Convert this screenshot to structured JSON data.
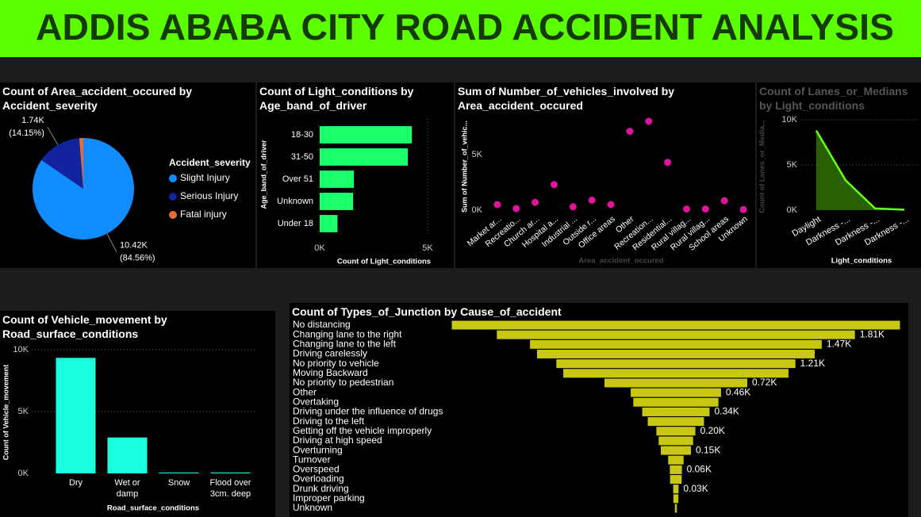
{
  "header": {
    "title": "ADDIS ABABA CITY ROAD ACCIDENT ANALYSIS"
  },
  "chart_data": [
    {
      "type": "pie",
      "title": "Count of Area_accident_occured by Accident_severity",
      "legend_title": "Accident_severity",
      "categories": [
        "Slight Injury",
        "Serious Injury",
        "Fatal injury"
      ],
      "values": [
        10415,
        1743,
        158
      ],
      "colors": [
        "#118dff",
        "#12239e",
        "#e66c37"
      ],
      "value_labels": [
        "10.42K",
        "1.74K",
        null
      ],
      "percent_labels": [
        "(84.56%)",
        "(14.15%)",
        null
      ]
    },
    {
      "type": "bar",
      "horizontal": true,
      "title": "Count of Light_conditions by Age_band_of_driver",
      "categories": [
        "18-30",
        "31-50",
        "Over 51",
        "Unknown",
        "Under 18"
      ],
      "values": [
        4271,
        4087,
        1585,
        1548,
        825
      ],
      "color": "#1aff6a",
      "xlim": [
        0,
        5000
      ],
      "xticks": [
        {
          "value": 0,
          "label": "0K"
        },
        {
          "value": 5000,
          "label": "5K"
        }
      ],
      "xlabel": "Count of Light_conditions",
      "ylabel": "Age_band_of_driver",
      "grid": true
    },
    {
      "type": "scatter",
      "title": "Sum of Number_of_vehicles_involved by Area_accident_occured",
      "categories": [
        "Market ar...",
        "Recreatio...",
        "Church ar...",
        "Hospital a...",
        "Industrial ...",
        "Outside r...",
        "Office areas",
        "Other",
        "Recreation...",
        "Residential...",
        "Rural villag...",
        "Rural villag...",
        "School areas",
        "Unknown"
      ],
      "values": [
        500,
        140,
        700,
        2300,
        300,
        900,
        500,
        7100,
        8000,
        4300,
        100,
        100,
        850,
        50
      ],
      "color": "#e0139b",
      "ylim": [
        0,
        8500
      ],
      "yticks": [
        {
          "value": 0,
          "label": "0K"
        },
        {
          "value": 5000,
          "label": "5K"
        }
      ],
      "xlabel": "Area_accident_occured",
      "ylabel": "Sum of Number_of_vehic...",
      "grid": false
    },
    {
      "type": "area",
      "title": "Count of Lanes_or_Medians by Light_conditions",
      "categories": [
        "Daylight",
        "Darkness -...",
        "Darkness -...",
        "Darkness -..."
      ],
      "values": [
        8800,
        3300,
        190,
        40
      ],
      "color": "#66ff1a",
      "ylim": [
        0,
        10000
      ],
      "yticks": [
        {
          "value": 0,
          "label": "0K"
        },
        {
          "value": 5000,
          "label": "5K"
        },
        {
          "value": 10000,
          "label": "10K"
        }
      ],
      "xlabel": "Light_conditions",
      "ylabel": "Count of Lanes_or_Media...",
      "grid": true
    },
    {
      "type": "bar",
      "horizontal": false,
      "title": "Count of Vehicle_movement by Road_surface_conditions",
      "categories": [
        "Dry",
        "Wet or damp",
        "Snow",
        "Flood over 3cm. deep"
      ],
      "values": [
        9340,
        2904,
        70,
        70
      ],
      "color": "#1affe0",
      "ylim": [
        0,
        10000
      ],
      "yticks": [
        {
          "value": 0,
          "label": "0K"
        },
        {
          "value": 5000,
          "label": "5K"
        },
        {
          "value": 10000,
          "label": "10K"
        }
      ],
      "xlabel": "Road_surface_conditions",
      "ylabel": "Count of Vehicle_movement",
      "grid": true
    },
    {
      "type": "funnel",
      "title": "Count of Types_of_Junction by Cause_of_accident",
      "categories": [
        "No distancing",
        "Changing lane to the right",
        "Changing lane to the left",
        "Driving carelessly",
        "No priority to vehicle",
        "Moving Backward",
        "No priority to pedestrian",
        "Other",
        "Overtaking",
        "Driving under the influence of drugs",
        "Driving to the left",
        "Getting off the vehicle improperly",
        "Driving at high speed",
        "Overturning",
        "Turnover",
        "Overspeed",
        "Overloading",
        "Drunk driving",
        "Improper parking",
        "Unknown"
      ],
      "values": [
        2263,
        1808,
        1473,
        1402,
        1207,
        1137,
        721,
        456,
        430,
        340,
        284,
        197,
        174,
        152,
        78,
        61,
        59,
        27,
        25,
        10
      ],
      "value_labels": [
        null,
        "1.81K",
        "1.47K",
        null,
        "1.21K",
        null,
        "0.72K",
        "0.46K",
        null,
        "0.34K",
        null,
        "0.20K",
        null,
        "0.15K",
        null,
        "0.06K",
        null,
        "0.03K",
        null,
        null
      ],
      "color": "#c8c814"
    }
  ]
}
